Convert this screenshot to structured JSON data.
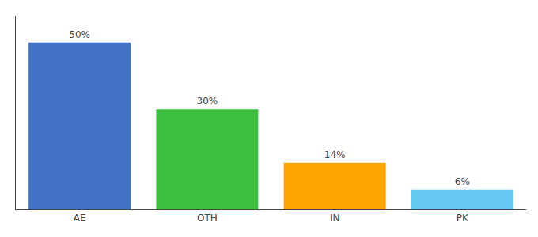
{
  "chart_data": {
    "type": "bar",
    "categories": [
      "AE",
      "OTH",
      "IN",
      "PK"
    ],
    "values": [
      50,
      30,
      14,
      6
    ],
    "value_labels": [
      "50%",
      "30%",
      "14%",
      "6%"
    ],
    "data_labels": true,
    "colors": [
      "#4472C4",
      "#3DBF3D",
      "#FFA500",
      "#64C8F0"
    ],
    "ylim": [
      0,
      58
    ],
    "tick_labels": "x",
    "grid": false
  }
}
